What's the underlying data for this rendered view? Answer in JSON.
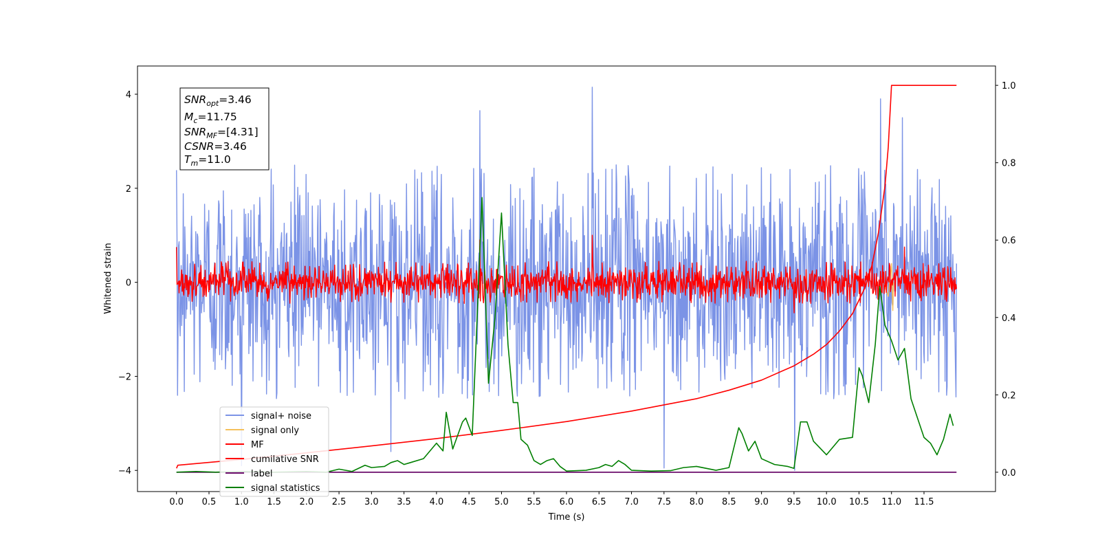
{
  "chart_data": {
    "type": "line",
    "xlabel": "Time (s)",
    "ylabel": "Whitened strain",
    "xlim": [
      -0.6,
      12.6
    ],
    "ylim": [
      -4.45,
      4.6
    ],
    "y2lim": [
      -0.05,
      1.05
    ],
    "x_ticks": [
      0.0,
      0.5,
      1.0,
      1.5,
      2.0,
      2.5,
      3.0,
      3.5,
      4.0,
      4.5,
      5.0,
      5.5,
      6.0,
      6.5,
      7.0,
      7.5,
      8.0,
      8.5,
      9.0,
      9.5,
      10.0,
      10.5,
      11.0,
      11.5
    ],
    "x_tick_labels": [
      "0.0",
      "0.5",
      "1.0",
      "1.5",
      "2.0",
      "2.5",
      "3.0",
      "3.5",
      "4.0",
      "4.5",
      "5.0",
      "5.5",
      "6.0",
      "6.5",
      "7.0",
      "7.5",
      "8.0",
      "8.5",
      "9.0",
      "9.5",
      "10.0",
      "10.5",
      "11.0",
      "11.5"
    ],
    "y_ticks": [
      -4,
      -2,
      0,
      2,
      4
    ],
    "y_tick_labels": [
      "−4",
      "−2",
      "0",
      "2",
      "4"
    ],
    "y2_ticks": [
      0.0,
      0.2,
      0.4,
      0.6,
      0.8,
      1.0
    ],
    "y2_tick_labels": [
      "0.0",
      "0.2",
      "0.4",
      "0.6",
      "0.8",
      "1.0"
    ],
    "grid": false,
    "legend_position": "lower-left",
    "legend": [
      {
        "label": "signal+ noise",
        "color": "#7b93e6"
      },
      {
        "label": "signal only",
        "color": "#f5c05a"
      },
      {
        "label": "MF",
        "color": "#ff0000"
      },
      {
        "label": "cumilative SNR",
        "color": "#ff0000"
      },
      {
        "label": "label",
        "color": "#6a0a6a"
      },
      {
        "label": "signal statistics",
        "color": "#007f00"
      }
    ],
    "info_box": {
      "snr_opt": {
        "name": "SNR",
        "sub": "opt",
        "value": "=3.46"
      },
      "mc": {
        "name": "M",
        "sub": "c",
        "value": "=11.75"
      },
      "snr_mf": {
        "name": "SNR",
        "sub": "MF",
        "value": "=[4.31]"
      },
      "csnr": {
        "name": "CSNR",
        "sub": "",
        "value": "=3.46"
      },
      "tm": {
        "name": "T",
        "sub": "m",
        "value": "=11.0"
      }
    },
    "series": [
      {
        "name": "signal+ noise",
        "axis": "left",
        "color": "#7b93e6",
        "description": "noise-dominated whitened strain, approx. uniform amplitude band ±2.5 with spikes to ~±3.5",
        "x_range": [
          0.0,
          12.0
        ],
        "typical_envelope": [
          -2.5,
          2.5
        ],
        "peaks": [
          {
            "x": 6.4,
            "y": 4.15
          },
          {
            "x": 4.67,
            "y": 3.65
          },
          {
            "x": 10.83,
            "y": 3.9
          },
          {
            "x": 11.17,
            "y": 3.5
          },
          {
            "x": 9.51,
            "y": -4.0
          },
          {
            "x": 7.5,
            "y": -3.95
          },
          {
            "x": 3.3,
            "y": -3.6
          },
          {
            "x": 1.0,
            "y": -3.9
          }
        ]
      },
      {
        "name": "signal only",
        "axis": "left",
        "color": "#f5c05a",
        "description": "chirp mostly hidden, visible near merger",
        "points": [
          [
            10.85,
            0.1
          ],
          [
            10.95,
            -0.3
          ],
          [
            11.0,
            0.4
          ],
          [
            11.02,
            -0.6
          ],
          [
            11.03,
            0.0
          ]
        ]
      },
      {
        "name": "MF",
        "axis": "left",
        "color": "#ff0000",
        "description": "matched-filter output, band approx. ±0.45 with spikes",
        "x_range": [
          0.0,
          12.0
        ],
        "typical_envelope": [
          -0.45,
          0.45
        ],
        "peaks": [
          {
            "x": 6.4,
            "y": 1.0
          },
          {
            "x": 4.67,
            "y": 0.9
          },
          {
            "x": 0.0,
            "y": 0.75
          },
          {
            "x": 11.2,
            "y": 0.75
          },
          {
            "x": 9.5,
            "y": -0.65
          }
        ]
      },
      {
        "name": "cumilative SNR",
        "axis": "right",
        "color": "#ff0000",
        "x": [
          0.0,
          0.02,
          1.0,
          2.0,
          3.0,
          4.0,
          5.0,
          6.0,
          7.0,
          8.0,
          8.5,
          9.0,
          9.5,
          9.8,
          10.0,
          10.2,
          10.4,
          10.6,
          10.7,
          10.8,
          10.9,
          10.95,
          11.0,
          12.0
        ],
        "values": [
          0.01,
          0.018,
          0.033,
          0.05,
          0.068,
          0.087,
          0.108,
          0.131,
          0.158,
          0.19,
          0.212,
          0.238,
          0.275,
          0.305,
          0.33,
          0.365,
          0.41,
          0.48,
          0.535,
          0.62,
          0.74,
          0.84,
          1.0,
          1.0
        ]
      },
      {
        "name": "label",
        "axis": "right",
        "color": "#6a0a6a",
        "x": [
          0.0,
          12.0
        ],
        "values": [
          0.0,
          0.0
        ]
      },
      {
        "name": "signal statistics",
        "axis": "right",
        "color": "#007f00",
        "x": [
          0.0,
          0.3,
          0.6,
          1.0,
          1.5,
          2.0,
          2.3,
          2.5,
          2.7,
          2.9,
          3.0,
          3.2,
          3.3,
          3.4,
          3.5,
          3.6,
          3.8,
          4.0,
          4.1,
          4.15,
          4.25,
          4.4,
          4.45,
          4.55,
          4.65,
          4.7,
          4.8,
          4.9,
          5.0,
          5.1,
          5.18,
          5.25,
          5.3,
          5.4,
          5.5,
          5.6,
          5.7,
          5.8,
          5.9,
          6.0,
          6.3,
          6.5,
          6.6,
          6.7,
          6.8,
          6.9,
          7.0,
          7.3,
          7.6,
          7.8,
          8.0,
          8.3,
          8.5,
          8.65,
          8.7,
          8.8,
          8.9,
          9.0,
          9.2,
          9.4,
          9.5,
          9.6,
          9.7,
          9.8,
          10.0,
          10.2,
          10.4,
          10.5,
          10.55,
          10.65,
          10.75,
          10.82,
          10.9,
          11.0,
          11.1,
          11.2,
          11.3,
          11.5,
          11.6,
          11.7,
          11.8,
          11.9,
          11.95
        ],
        "values": [
          0.0,
          0.002,
          0.0,
          0.002,
          0.0,
          0.002,
          0.0,
          0.008,
          0.002,
          0.018,
          0.012,
          0.015,
          0.025,
          0.03,
          0.02,
          0.025,
          0.035,
          0.075,
          0.055,
          0.155,
          0.06,
          0.13,
          0.14,
          0.095,
          0.5,
          0.71,
          0.23,
          0.4,
          0.67,
          0.33,
          0.18,
          0.18,
          0.085,
          0.07,
          0.03,
          0.02,
          0.03,
          0.035,
          0.015,
          0.003,
          0.005,
          0.012,
          0.02,
          0.015,
          0.03,
          0.02,
          0.005,
          0.003,
          0.004,
          0.012,
          0.015,
          0.005,
          0.012,
          0.115,
          0.1,
          0.055,
          0.08,
          0.035,
          0.02,
          0.015,
          0.01,
          0.13,
          0.13,
          0.08,
          0.045,
          0.085,
          0.09,
          0.27,
          0.25,
          0.18,
          0.33,
          0.48,
          0.38,
          0.34,
          0.29,
          0.32,
          0.19,
          0.09,
          0.075,
          0.045,
          0.085,
          0.15,
          0.12
        ]
      }
    ]
  }
}
